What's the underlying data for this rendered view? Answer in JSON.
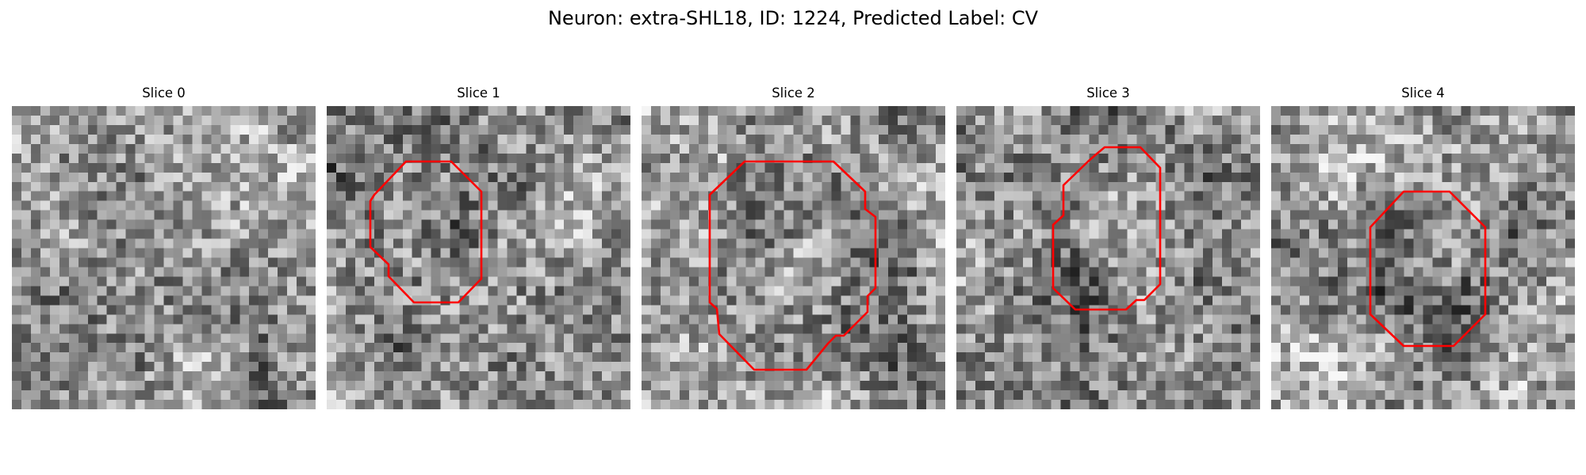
{
  "figure": {
    "title": "Neuron: extra-SHL18, ID: 1224, Predicted Label: CV"
  },
  "colors": {
    "contour": "#ff0000",
    "colormap": "gray"
  },
  "panels": [
    {
      "title": "Slice 0",
      "has_contour": false
    },
    {
      "title": "Slice 1",
      "has_contour": true
    },
    {
      "title": "Slice 2",
      "has_contour": true
    },
    {
      "title": "Slice 3",
      "has_contour": true
    },
    {
      "title": "Slice 4",
      "has_contour": true
    }
  ]
}
